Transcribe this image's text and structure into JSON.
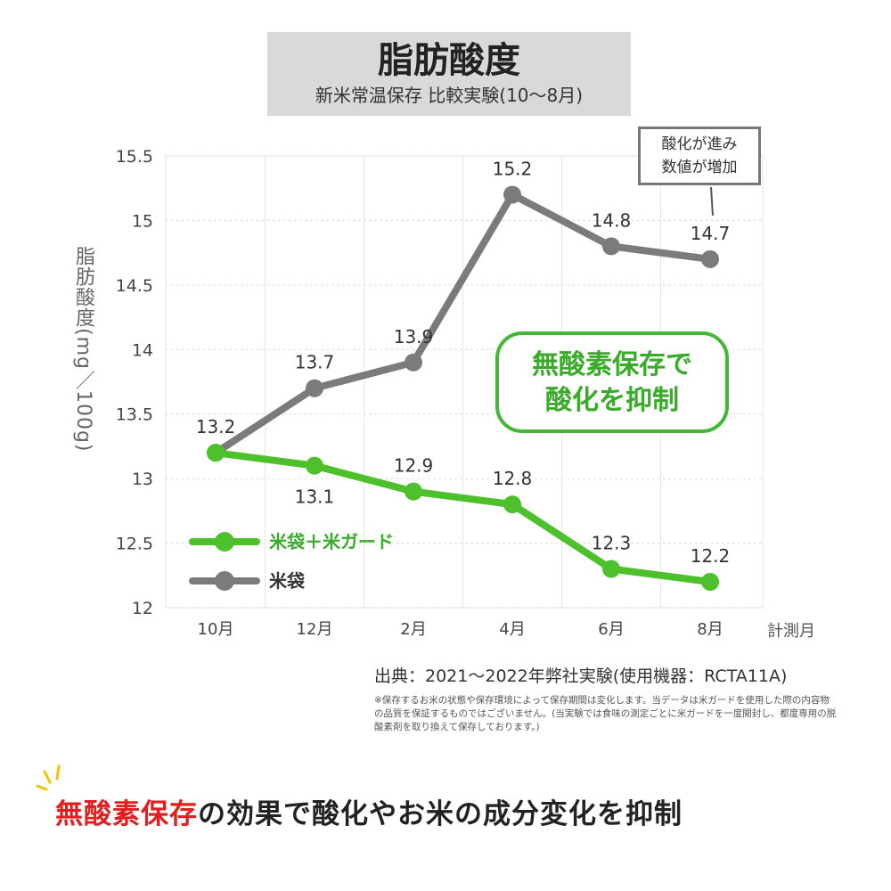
{
  "header": {
    "title": "脂肪酸度",
    "subtitle": "新米常温保存 比較実験(10～8月)"
  },
  "callouts": {
    "main_line1": "無酸素保存で",
    "main_line2": "酸化を抑制",
    "side_line1": "酸化が進み",
    "side_line2": "数値が増加"
  },
  "footer": {
    "source": "出典：2021～2022年弊社実験(使用機器：RCTA11A)",
    "note": "※保存するお米の状態や保存環境によって保存期間は変化します。当データは米ガードを使用した際の内容物の品質を保証するものではございません。(当実験では食味の測定ごとに米ガードを一度開封し、都度専用の脱酸素剤を取り換えて保存しております。)",
    "tagline_highlight": "無酸素保存",
    "tagline_rest": "の効果で酸化やお米の成分変化を抑制"
  },
  "colors": {
    "green": "#4cc12b",
    "gray": "#7b7b7b",
    "highlight_red": "#e21e1e"
  },
  "chart_data": {
    "type": "line",
    "categories": [
      "10月",
      "12月",
      "2月",
      "4月",
      "6月",
      "8月"
    ],
    "series": [
      {
        "name": "米袋＋米ガード",
        "values": [
          13.2,
          13.1,
          12.9,
          12.8,
          12.3,
          12.2
        ]
      },
      {
        "name": "米袋",
        "values": [
          13.2,
          13.7,
          13.9,
          15.2,
          14.8,
          14.7
        ]
      }
    ],
    "data_labels": {
      "米袋＋米ガード": [
        "",
        "13.1",
        "12.9",
        "12.8",
        "12.3",
        "12.2"
      ],
      "米袋": [
        "13.2",
        "13.7",
        "13.9",
        "15.2",
        "14.8",
        "14.7"
      ]
    },
    "yticks": [
      "12",
      "12.5",
      "13",
      "13.5",
      "14",
      "14.5",
      "15",
      "15.5"
    ],
    "ylim": [
      12,
      15.5
    ],
    "xlabel": "計測月",
    "ylabel": "脂肪酸度(mg／100g)",
    "grid": true,
    "legend": "bottom-left"
  }
}
